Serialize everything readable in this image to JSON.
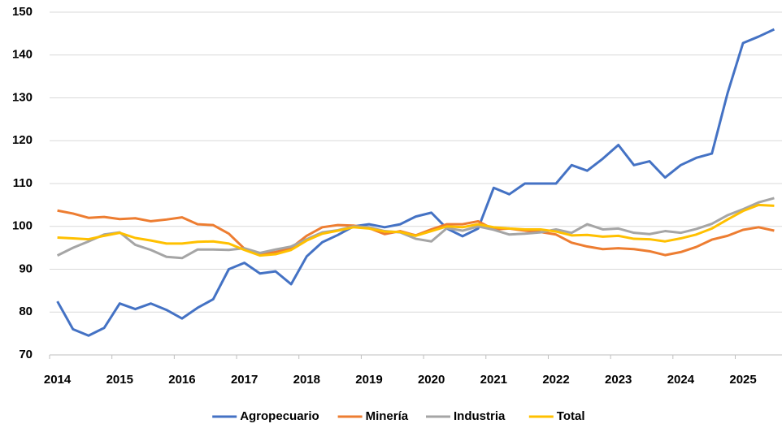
{
  "chart_data": {
    "type": "line",
    "categories": [
      "2014",
      null,
      null,
      null,
      "2015",
      null,
      null,
      null,
      "2016",
      null,
      null,
      null,
      "2017",
      null,
      null,
      null,
      "2018",
      null,
      null,
      null,
      "2019",
      null,
      null,
      null,
      "2020",
      null,
      null,
      null,
      "2021",
      null,
      null,
      null,
      "2022",
      null,
      null,
      null,
      "2023",
      null,
      null,
      null,
      "2024",
      null,
      null,
      null,
      "2025",
      null,
      null
    ],
    "series": [
      {
        "name": "Agropecuario",
        "color": "#4472c4",
        "values": [
          82.5,
          76,
          74.5,
          76.3,
          82,
          80.7,
          82,
          80.5,
          78.5,
          81,
          83,
          90,
          91.5,
          89,
          89.5,
          86.5,
          93,
          96.3,
          98,
          100,
          100.5,
          99.8,
          100.5,
          102.3,
          103.2,
          99.5,
          97.7,
          99.5,
          109,
          107.5,
          110,
          110,
          110,
          114.3,
          113,
          115.8,
          119,
          114.3,
          115.2,
          111.4,
          114.3,
          116,
          117,
          131,
          142.8,
          144.3,
          146
        ]
      },
      {
        "name": "Minería",
        "color": "#ed7d31",
        "values": [
          103.7,
          103,
          102,
          102.2,
          101.7,
          101.9,
          101.2,
          101.6,
          102.1,
          100.5,
          100.3,
          98.3,
          94.8,
          93.5,
          94,
          95,
          97.8,
          99.8,
          100.3,
          100.2,
          99.6,
          98.2,
          98.9,
          97.9,
          99.3,
          100.5,
          100.5,
          101.2,
          99.3,
          99.5,
          99,
          98.7,
          98.1,
          96.2,
          95.3,
          94.7,
          94.9,
          94.7,
          94.2,
          93.3,
          94,
          95.2,
          96.9,
          97.8,
          99.2,
          99.8,
          99
        ]
      },
      {
        "name": "Industria",
        "color": "#a5a5a5",
        "values": [
          93.2,
          95,
          96.5,
          98.1,
          98.6,
          95.7,
          94.5,
          92.9,
          92.6,
          94.6,
          94.6,
          94.5,
          94.9,
          93.8,
          94.6,
          95.3,
          97,
          98.6,
          99.1,
          100,
          99.8,
          98.9,
          98.6,
          97.1,
          96.5,
          99.6,
          99,
          100,
          99.2,
          98.1,
          98.3,
          98.6,
          99.3,
          98.5,
          100.5,
          99.3,
          99.5,
          98.5,
          98.2,
          98.9,
          98.5,
          99.4,
          100.6,
          102.6,
          104,
          105.6,
          106.6
        ]
      },
      {
        "name": "Total",
        "color": "#ffc000",
        "values": [
          97.4,
          97.2,
          97,
          97.8,
          98.5,
          97.3,
          96.7,
          96,
          96,
          96.4,
          96.5,
          96,
          94.5,
          93.2,
          93.5,
          94.5,
          96.7,
          98.3,
          99,
          99.8,
          99.5,
          98.8,
          98.7,
          97.8,
          98.9,
          100,
          99.8,
          100.5,
          99.8,
          99.5,
          99.3,
          99.3,
          98.8,
          97.9,
          98,
          97.6,
          97.8,
          97.1,
          97,
          96.5,
          97.2,
          98.1,
          99.5,
          101.6,
          103.6,
          105,
          104.8
        ]
      }
    ],
    "ylim": [
      70,
      150
    ],
    "yticks": [
      70,
      80,
      90,
      100,
      110,
      120,
      130,
      140,
      150
    ],
    "grid": true,
    "legend": "bottom"
  }
}
